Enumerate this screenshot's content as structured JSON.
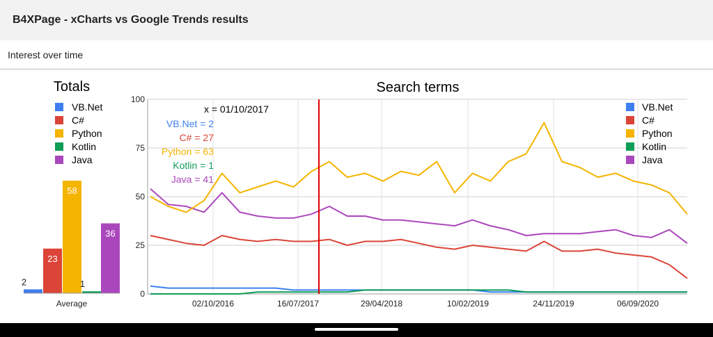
{
  "app": {
    "title": "B4XPage - xCharts vs Google Trends results"
  },
  "header": {
    "subtitle": "Interest over time"
  },
  "colors": {
    "vbnet": "#3d7ff0",
    "csharp": "#db4437",
    "python": "#f4b400",
    "kotlin": "#0f9d58",
    "java": "#ab47bc",
    "cursor": "#e00000"
  },
  "chart_data": [
    {
      "type": "bar",
      "title": "Totals",
      "categories": [
        "Average"
      ],
      "xlabel": "",
      "ylabel": "",
      "ylim": [
        0,
        70
      ],
      "legend": "top-left",
      "series": [
        {
          "name": "VB.Net",
          "values": [
            2
          ]
        },
        {
          "name": "C#",
          "values": [
            23
          ]
        },
        {
          "name": "Python",
          "values": [
            58
          ]
        },
        {
          "name": "Kotlin",
          "values": [
            1
          ]
        },
        {
          "name": "Java",
          "values": [
            36
          ]
        }
      ]
    },
    {
      "type": "line",
      "title": "Search terms",
      "xlabel": "",
      "ylabel": "",
      "ylim": [
        0,
        100
      ],
      "yticks": [
        "0",
        "25",
        "50",
        "75",
        "100"
      ],
      "xticks": [
        "02/10/2016",
        "16/07/2017",
        "29/04/2018",
        "10/02/2019",
        "24/11/2019",
        "06/09/2020"
      ],
      "grid": true,
      "legend": "top-right",
      "x_range": [
        "2016-04",
        "2021-03"
      ],
      "x": [
        "2016-04",
        "2016-06",
        "2016-08",
        "2016-10",
        "2016-12",
        "2017-02",
        "2017-04",
        "2017-06",
        "2017-08",
        "2017-10",
        "2017-12",
        "2018-02",
        "2018-04",
        "2018-06",
        "2018-08",
        "2018-10",
        "2018-12",
        "2019-02",
        "2019-04",
        "2019-06",
        "2019-08",
        "2019-10",
        "2019-12",
        "2020-02",
        "2020-04",
        "2020-06",
        "2020-08",
        "2020-10",
        "2020-12",
        "2021-02",
        "2021-03"
      ],
      "series": [
        {
          "name": "VB.Net",
          "values": [
            4,
            3,
            3,
            3,
            3,
            3,
            3,
            3,
            2,
            2,
            2,
            2,
            2,
            2,
            2,
            2,
            2,
            2,
            2,
            1,
            1,
            1,
            1,
            1,
            1,
            1,
            1,
            1,
            1,
            1,
            1
          ]
        },
        {
          "name": "C#",
          "values": [
            30,
            28,
            26,
            25,
            30,
            28,
            27,
            28,
            27,
            27,
            28,
            25,
            27,
            27,
            28,
            26,
            24,
            23,
            25,
            24,
            23,
            22,
            27,
            22,
            22,
            23,
            21,
            20,
            19,
            15,
            8
          ]
        },
        {
          "name": "Python",
          "values": [
            50,
            45,
            42,
            48,
            62,
            52,
            55,
            58,
            55,
            63,
            68,
            60,
            62,
            58,
            63,
            61,
            68,
            52,
            62,
            58,
            68,
            72,
            88,
            68,
            65,
            60,
            62,
            58,
            56,
            52,
            41
          ]
        },
        {
          "name": "Kotlin",
          "values": [
            0,
            0,
            0,
            0,
            0,
            0,
            1,
            1,
            1,
            1,
            1,
            1,
            2,
            2,
            2,
            2,
            2,
            2,
            2,
            2,
            2,
            1,
            1,
            1,
            1,
            1,
            1,
            1,
            1,
            1,
            1
          ]
        },
        {
          "name": "Java",
          "values": [
            54,
            46,
            45,
            42,
            52,
            42,
            40,
            39,
            39,
            41,
            45,
            40,
            40,
            38,
            38,
            37,
            36,
            35,
            38,
            35,
            33,
            30,
            31,
            31,
            31,
            32,
            33,
            30,
            29,
            33,
            26
          ]
        }
      ],
      "annotation": {
        "x_label": "x = 01/10/2017",
        "lines": [
          {
            "key": "vbnet",
            "text": "VB.Net = 2"
          },
          {
            "key": "csharp",
            "text": "C# = 27"
          },
          {
            "key": "python",
            "text": "Python = 63"
          },
          {
            "key": "kotlin",
            "text": "Kotlin = 1"
          },
          {
            "key": "java",
            "text": "Java = 41"
          }
        ]
      }
    }
  ],
  "totals_legend": [
    "VB.Net",
    "C#",
    "Python",
    "Kotlin",
    "Java"
  ],
  "terms_legend": [
    "VB.Net",
    "C#",
    "Python",
    "Kotlin",
    "Java"
  ]
}
